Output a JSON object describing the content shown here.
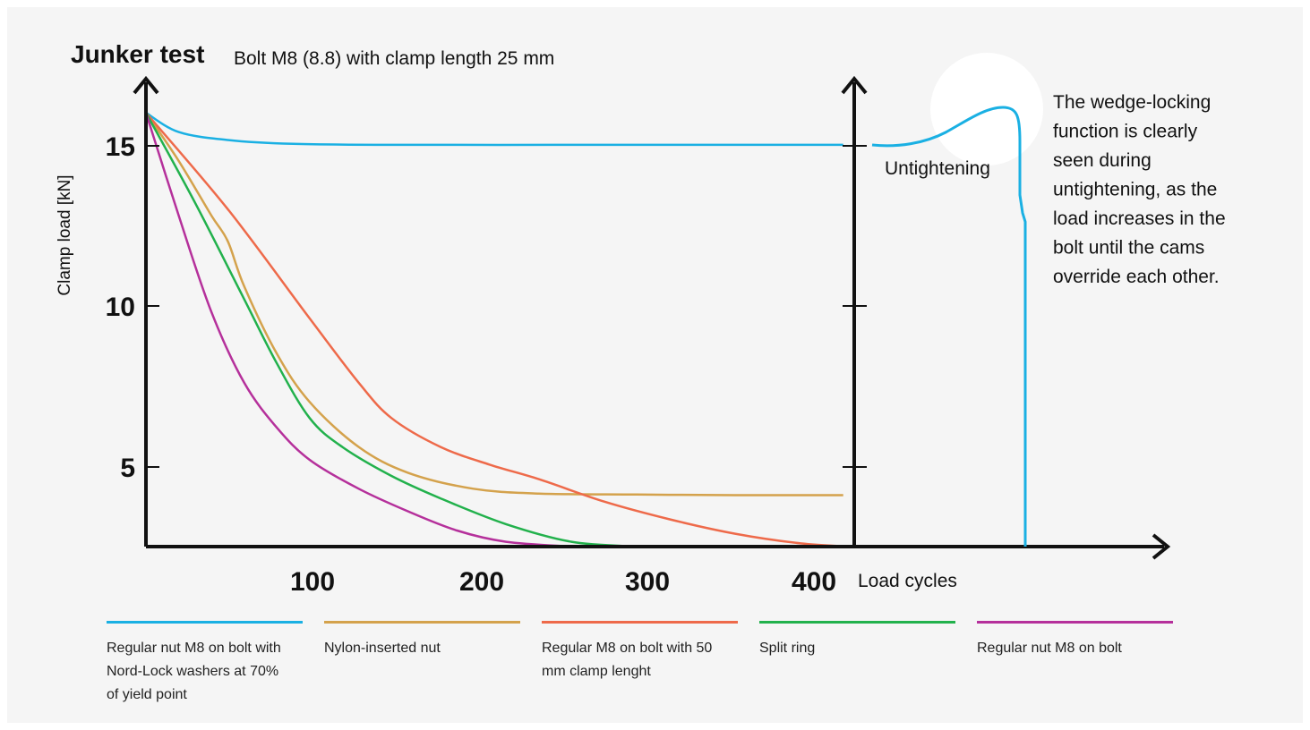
{
  "chart_data": {
    "type": "line",
    "title": "Junker test",
    "subtitle": "Bolt M8 (8.8) with clamp length 25 mm",
    "xlabel": "Load cycles",
    "ylabel": "Clamp load [kN]",
    "x_ticks": [
      "100",
      "200",
      "300",
      "400"
    ],
    "y_ticks": [
      "5",
      "10",
      "15"
    ],
    "xlim": [
      0,
      430
    ],
    "ylim": [
      2.5,
      16
    ],
    "grid": false,
    "legend_position": "bottom",
    "series": [
      {
        "name": "Regular nut M8 on bolt with Nord-Lock washers at 70% of yield point",
        "color": "#1ab0e3",
        "x": [
          0,
          20,
          50,
          90,
          150,
          250,
          350,
          426
        ],
        "y": [
          16.0,
          15.4,
          15.15,
          15.03,
          15.0,
          15.0,
          15.0,
          15.0
        ]
      },
      {
        "name": "Nylon-inserted nut",
        "color": "#d4a24c",
        "x": [
          0,
          20,
          40,
          50,
          60,
          80,
          100,
          130,
          160,
          200,
          240,
          300,
          360,
          426
        ],
        "y": [
          16.0,
          14.5,
          12.8,
          12.0,
          10.6,
          8.5,
          7.0,
          5.6,
          4.8,
          4.3,
          4.15,
          4.12,
          4.1,
          4.1
        ]
      },
      {
        "name": "Regular M8 on bolt with 50 mm clamp lenght",
        "color": "#ee6a4a",
        "x": [
          0,
          50,
          100,
          130,
          150,
          180,
          210,
          240,
          280,
          320,
          360,
          400,
          430
        ],
        "y": [
          16.0,
          13.0,
          9.6,
          7.6,
          6.5,
          5.6,
          5.05,
          4.6,
          3.9,
          3.35,
          2.9,
          2.6,
          2.5
        ]
      },
      {
        "name": "Split ring",
        "color": "#22b14c",
        "x": [
          0,
          30,
          60,
          80,
          100,
          120,
          150,
          180,
          220,
          260,
          300
        ],
        "y": [
          16.0,
          13.2,
          10.2,
          8.2,
          6.5,
          5.6,
          4.7,
          4.0,
          3.2,
          2.65,
          2.5
        ]
      },
      {
        "name": "Regular nut M8 on bolt",
        "color": "#b5309b",
        "x": [
          0,
          20,
          40,
          60,
          80,
          100,
          130,
          160,
          190,
          220,
          260
        ],
        "y": [
          16.0,
          12.8,
          9.8,
          7.6,
          6.2,
          5.2,
          4.3,
          3.6,
          3.0,
          2.65,
          2.5
        ]
      }
    ],
    "untightening": {
      "label": "Untightening",
      "color": "#1ab0e3",
      "annotation": "The wedge-locking function is clearly seen during untightening, as the load increases in the bolt until the cams override each other."
    }
  }
}
